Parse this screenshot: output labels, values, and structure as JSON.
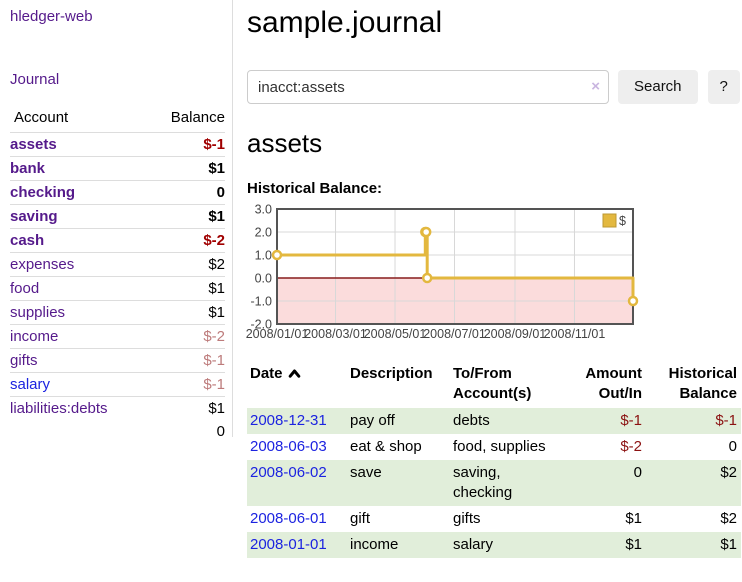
{
  "sidebar": {
    "app_title": "hledger-web",
    "nav": {
      "journal_label": "Journal"
    },
    "accounts_table": {
      "headers": {
        "account": "Account",
        "balance": "Balance"
      },
      "rows": [
        {
          "name": "assets",
          "balance": "$-1",
          "indent": 1,
          "bold": true,
          "balance_tone": "neg-strong"
        },
        {
          "name": "bank",
          "balance": "$1",
          "indent": 2,
          "bold": true,
          "balance_tone": ""
        },
        {
          "name": "checking",
          "balance": "0",
          "indent": 3,
          "bold": true,
          "balance_tone": ""
        },
        {
          "name": "saving",
          "balance": "$1",
          "indent": 3,
          "bold": true,
          "balance_tone": ""
        },
        {
          "name": "cash",
          "balance": "$-2",
          "indent": 2,
          "bold": true,
          "balance_tone": "neg-strong"
        },
        {
          "name": "expenses",
          "balance": "$2",
          "indent": 1,
          "bold": false,
          "balance_tone": ""
        },
        {
          "name": "food",
          "balance": "$1",
          "indent": 2,
          "bold": false,
          "balance_tone": ""
        },
        {
          "name": "supplies",
          "balance": "$1",
          "indent": 2,
          "bold": false,
          "balance_tone": ""
        },
        {
          "name": "income",
          "balance": "$-2",
          "indent": 1,
          "bold": false,
          "balance_tone": "neg-muted"
        },
        {
          "name": "gifts",
          "balance": "$-1",
          "indent": 2,
          "bold": false,
          "balance_tone": "neg-muted"
        },
        {
          "name": "salary",
          "balance": "$-1",
          "indent": 2,
          "bold": false,
          "balance_tone": "neg-muted",
          "link_tone": "blue"
        },
        {
          "name": "liabilities:debts",
          "balance": "$1",
          "indent": 1,
          "bold": false,
          "balance_tone": ""
        }
      ],
      "total": "0"
    }
  },
  "header": {
    "title": "sample.journal"
  },
  "search": {
    "value": "inacct:assets",
    "clear_icon": "×",
    "button_label": "Search",
    "help_label": "?"
  },
  "account_page": {
    "heading": "assets"
  },
  "chart_data": {
    "type": "line",
    "step": true,
    "title": "Historical Balance:",
    "series": [
      {
        "name": "$",
        "color": "#e3b83f",
        "points": [
          [
            "2008-01-01",
            1
          ],
          [
            "2008-06-01",
            2
          ],
          [
            "2008-06-02",
            2
          ],
          [
            "2008-06-03",
            0
          ],
          [
            "2008-12-31",
            -1
          ]
        ]
      }
    ],
    "xlim": [
      "2008-01-01",
      "2008-12-31"
    ],
    "ylim": [
      -2.0,
      3.0
    ],
    "y_ticks": [
      3.0,
      2.0,
      1.0,
      0.0,
      -1.0,
      -2.0
    ],
    "x_ticks": [
      "2008/01/01",
      "2008/03/01",
      "2008/05/01",
      "2008/07/01",
      "2008/09/01",
      "2008/11/01"
    ],
    "legend": {
      "label": "$",
      "position": "top-right"
    },
    "grid": true,
    "grid_color": "#d8d8d8",
    "negative_region_fill": "#fbdcdc",
    "zero_line_color": "#871c1c",
    "border_color": "#545454",
    "marker_fill": "#ffffff"
  },
  "register_table": {
    "headers": {
      "date": "Date",
      "description": "Description",
      "accounts": "To/From Account(s)",
      "amount": "Amount Out/In",
      "balance": "Historical Balance"
    },
    "rows": [
      {
        "date": "2008-12-31",
        "description": "pay off",
        "accounts": "debts",
        "amount": "$-1",
        "amount_negative": true,
        "balance": "$-1",
        "balance_negative": true
      },
      {
        "date": "2008-06-03",
        "description": "eat & shop",
        "accounts": "food, supplies",
        "amount": "$-2",
        "amount_negative": true,
        "balance": "0",
        "balance_negative": false
      },
      {
        "date": "2008-06-02",
        "description": "save",
        "accounts": "saving, checking",
        "amount": "0",
        "amount_negative": false,
        "balance": "$2",
        "balance_negative": false
      },
      {
        "date": "2008-06-01",
        "description": "gift",
        "accounts": "gifts",
        "amount": "$1",
        "amount_negative": false,
        "balance": "$2",
        "balance_negative": false
      },
      {
        "date": "2008-01-01",
        "description": "income",
        "accounts": "salary",
        "amount": "$1",
        "amount_negative": false,
        "balance": "$1",
        "balance_negative": false
      }
    ]
  },
  "colors": {
    "link_purple": "#551a8b",
    "link_blue": "#1c23e0",
    "negative_strong": "#a00000",
    "negative_muted": "#bd7b7b",
    "negative_table": "#8b1111",
    "row_green": "#e1eeda",
    "accent_yellow": "#e3b83f",
    "button_bg": "#eeeeee"
  }
}
